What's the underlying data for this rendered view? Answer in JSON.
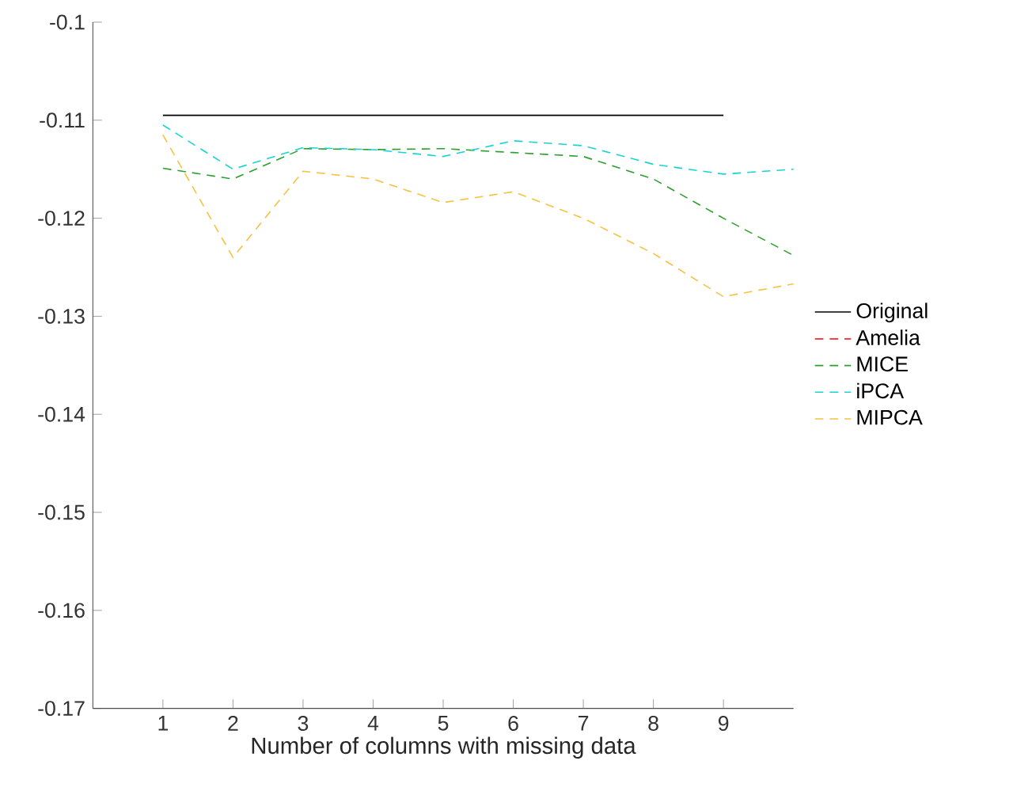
{
  "chart_data": {
    "type": "line",
    "xlabel": "Number of columns with missing data",
    "x": [
      1,
      2,
      3,
      4,
      5,
      6,
      7,
      8,
      9,
      10
    ],
    "xlim": [
      0,
      10
    ],
    "xticks": [
      1,
      2,
      3,
      4,
      5,
      6,
      7,
      8,
      9
    ],
    "ylim": [
      -0.17,
      -0.1
    ],
    "yticks": [
      -0.17,
      -0.16,
      -0.15,
      -0.14,
      -0.13,
      -0.12,
      -0.11,
      -0.1
    ],
    "legend": "right",
    "line_style": "dashed",
    "grid": false,
    "series": [
      {
        "name": "Original",
        "color": "#000000",
        "line_style": "solid",
        "x": [
          1,
          9
        ],
        "values": [
          -0.1095,
          -0.1095
        ]
      },
      {
        "name": "Amelia",
        "color": "#ff0000",
        "values": [
          null,
          null,
          null,
          null,
          null,
          null,
          null,
          null,
          null,
          null
        ]
      },
      {
        "name": "MICE",
        "color": "#2ca02c",
        "values": [
          -0.1149,
          -0.116,
          -0.1129,
          -0.113,
          -0.1129,
          -0.1133,
          -0.1137,
          -0.116,
          -0.12,
          -0.1238
        ]
      },
      {
        "name": "iPCA",
        "color": "#17d4d4",
        "values": [
          -0.1105,
          -0.115,
          -0.1128,
          -0.113,
          -0.1137,
          -0.1121,
          -0.1126,
          -0.1145,
          -0.1155,
          -0.115
        ]
      },
      {
        "name": "MIPCA",
        "color": "#f5c242",
        "values": [
          -0.1115,
          -0.124,
          -0.1152,
          -0.116,
          -0.1184,
          -0.1173,
          -0.12,
          -0.1236,
          -0.128,
          -0.1267
        ]
      }
    ]
  }
}
